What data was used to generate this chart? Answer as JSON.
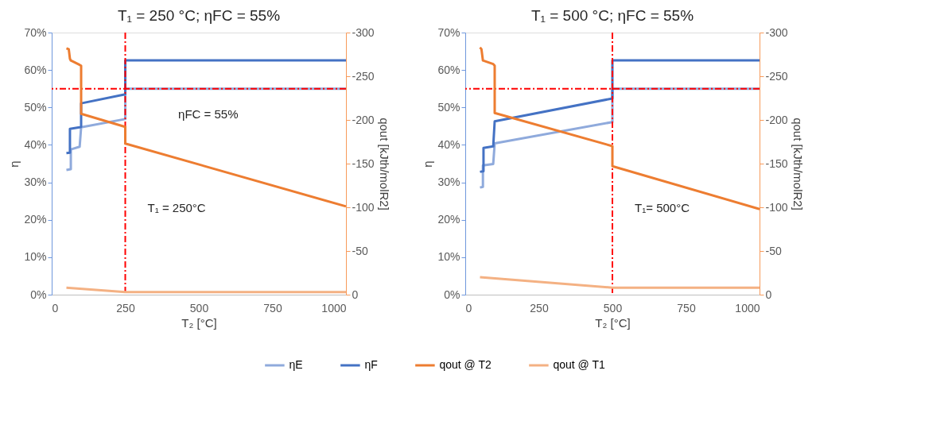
{
  "chart_data": [
    {
      "type": "line",
      "title": "T₁ = 250 °C; ηFC = 55%",
      "xlabel": "T₂ [°C]",
      "ylabel": "η",
      "y2label": "qout [kJth/molR2]",
      "xlim": [
        0,
        1000
      ],
      "xticks": [
        0,
        250,
        500,
        750,
        1000
      ],
      "ylim": [
        0,
        70
      ],
      "yticks": [
        {
          "value": 0,
          "label": "0%"
        },
        {
          "value": 10,
          "label": "10%"
        },
        {
          "value": 20,
          "label": "20%"
        },
        {
          "value": 30,
          "label": "30%"
        },
        {
          "value": 40,
          "label": "40%"
        },
        {
          "value": 50,
          "label": "50%"
        },
        {
          "value": 60,
          "label": "60%"
        },
        {
          "value": 70,
          "label": "70%"
        }
      ],
      "y2lim": [
        0,
        -300
      ],
      "y2ticks": [
        0,
        -50,
        -100,
        -150,
        -200,
        -250,
        -300
      ],
      "grid": false,
      "legend": "bottom",
      "line_style": "solid",
      "marker": "none",
      "series": [
        {
          "name": "ηE",
          "color": "#8faadc",
          "x": [
            50,
            65,
            65,
            95,
            100,
            250,
            250,
            1000
          ],
          "values": [
            33.3,
            33.5,
            38.8,
            39.5,
            44.7,
            46.9,
            55,
            55
          ]
        },
        {
          "name": "ηF",
          "color": "#4472c4",
          "x": [
            50,
            62,
            62,
            95,
            100,
            100,
            250,
            250,
            1000
          ],
          "values": [
            37.8,
            37.9,
            44.3,
            44.7,
            44.8,
            51.1,
            53.5,
            62.6,
            62.6
          ]
        },
        {
          "name": "qout @ T2",
          "color": "#ed7d31",
          "axis": "y2",
          "x": [
            50,
            58,
            62,
            65,
            95,
            100,
            100,
            250,
            250,
            1000
          ],
          "values": [
            -282,
            -281,
            -270,
            -268,
            -263,
            -262,
            -207,
            -192,
            -173,
            -101
          ]
        },
        {
          "name": "qout @ T1",
          "color": "#f4b183",
          "axis": "y2",
          "x": [
            50,
            250,
            1000
          ],
          "values": [
            -8,
            -3,
            -3
          ]
        }
      ],
      "ref_lines": [
        {
          "axis": "y",
          "value": 55,
          "label": "ηFC = 55%",
          "color": "#ff0000",
          "line_style": "dashed"
        },
        {
          "axis": "x",
          "value": 250,
          "label": "T₁ = 250°C",
          "color": "#ff0000",
          "line_style": "dashed"
        }
      ]
    },
    {
      "type": "line",
      "title": "T₁ = 500 °C; ηFC = 55%",
      "xlabel": "T₂ [°C]",
      "ylabel": "η",
      "y2label": "qout [kJth/molR2]",
      "xlim": [
        0,
        1000
      ],
      "xticks": [
        0,
        250,
        500,
        750,
        1000
      ],
      "ylim": [
        0,
        70
      ],
      "yticks": [
        {
          "value": 0,
          "label": "0%"
        },
        {
          "value": 10,
          "label": "10%"
        },
        {
          "value": 20,
          "label": "20%"
        },
        {
          "value": 30,
          "label": "30%"
        },
        {
          "value": 40,
          "label": "40%"
        },
        {
          "value": 50,
          "label": "50%"
        },
        {
          "value": 60,
          "label": "60%"
        },
        {
          "value": 70,
          "label": "70%"
        }
      ],
      "y2lim": [
        0,
        -300
      ],
      "y2ticks": [
        0,
        -50,
        -100,
        -150,
        -200,
        -250,
        -300
      ],
      "grid": false,
      "legend": "bottom",
      "line_style": "solid",
      "marker": "none",
      "series": [
        {
          "name": "ηE",
          "color": "#8faadc",
          "x": [
            50,
            60,
            60,
            95,
            100,
            500,
            500,
            1000
          ],
          "values": [
            28.6,
            28.8,
            34.5,
            34.9,
            40.4,
            46.1,
            55,
            55
          ]
        },
        {
          "name": "ηF",
          "color": "#4472c4",
          "x": [
            50,
            62,
            62,
            95,
            100,
            500,
            500,
            1000
          ],
          "values": [
            32.8,
            33,
            39.2,
            39.6,
            46.3,
            52.4,
            62.6,
            62.6
          ]
        },
        {
          "name": "qout @ T2",
          "color": "#ed7d31",
          "axis": "y2",
          "x": [
            50,
            55,
            60,
            95,
            100,
            100,
            500,
            500,
            1000
          ],
          "values": [
            -283,
            -281,
            -268,
            -264,
            -262,
            -208,
            -170,
            -147,
            -98
          ]
        },
        {
          "name": "qout @ T1",
          "color": "#f4b183",
          "axis": "y2",
          "x": [
            50,
            500,
            1000
          ],
          "values": [
            -20,
            -8,
            -8
          ]
        }
      ],
      "ref_lines": [
        {
          "axis": "y",
          "value": 55,
          "color": "#ff0000",
          "line_style": "dashed"
        },
        {
          "axis": "x",
          "value": 500,
          "label": "T₁= 500°C",
          "color": "#ff0000",
          "line_style": "dashed"
        }
      ]
    }
  ]
}
